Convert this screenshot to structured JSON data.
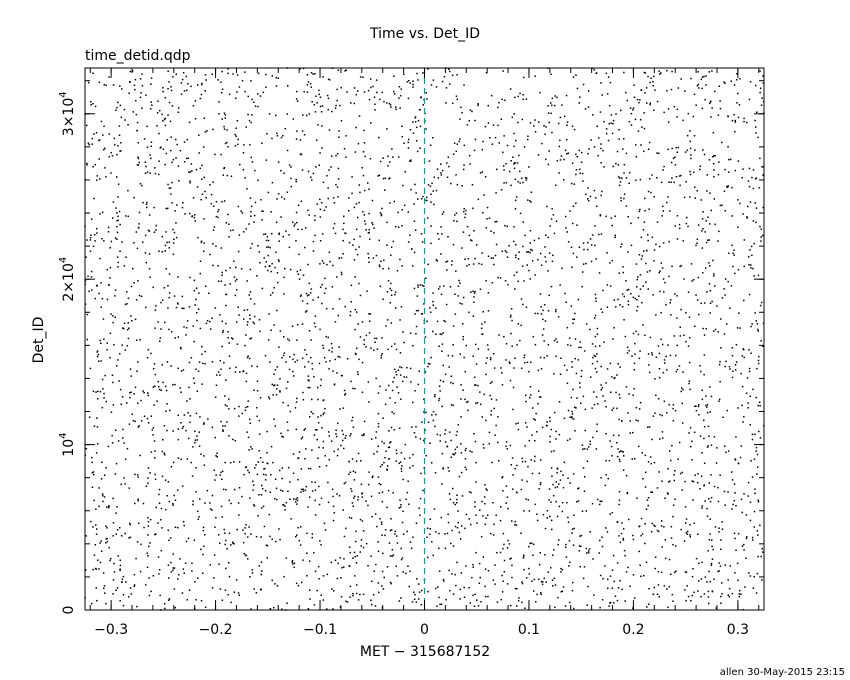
{
  "chart_data": {
    "type": "scatter",
    "title": "Time vs. Det_ID",
    "subtitle": "time_detid.qdp",
    "xlabel": "MET − 315687152",
    "ylabel": "Det_ID",
    "xlim": [
      -0.325,
      0.325
    ],
    "ylim": [
      0,
      32768
    ],
    "x_ticks": [
      {
        "value": -0.3,
        "label": "−0.3"
      },
      {
        "value": -0.2,
        "label": "−0.2"
      },
      {
        "value": -0.1,
        "label": "−0.1"
      },
      {
        "value": 0,
        "label": "0"
      },
      {
        "value": 0.1,
        "label": "0.1"
      },
      {
        "value": 0.2,
        "label": "0.2"
      },
      {
        "value": 0.3,
        "label": "0.3"
      }
    ],
    "y_ticks": [
      {
        "value": 0,
        "base": "0",
        "exp": ""
      },
      {
        "value": 10000,
        "base": "10",
        "exp": "4"
      },
      {
        "value": 20000,
        "base": "2×10",
        "exp": "4"
      },
      {
        "value": 30000,
        "base": "3×10",
        "exp": "4"
      }
    ],
    "x_minor_step": 0.02,
    "y_minor_step": 2000,
    "reference_line": {
      "x": 0,
      "style": "dashed",
      "color": "#00a0a0"
    },
    "series": [
      {
        "point_count": 4500,
        "color": "#000000",
        "distribution": "uniform random over xlim × ylim (individual events not resolvable)"
      }
    ],
    "grid": false,
    "legend": "none"
  },
  "footer": {
    "credit": "allen 30-May-2015 23:15"
  }
}
